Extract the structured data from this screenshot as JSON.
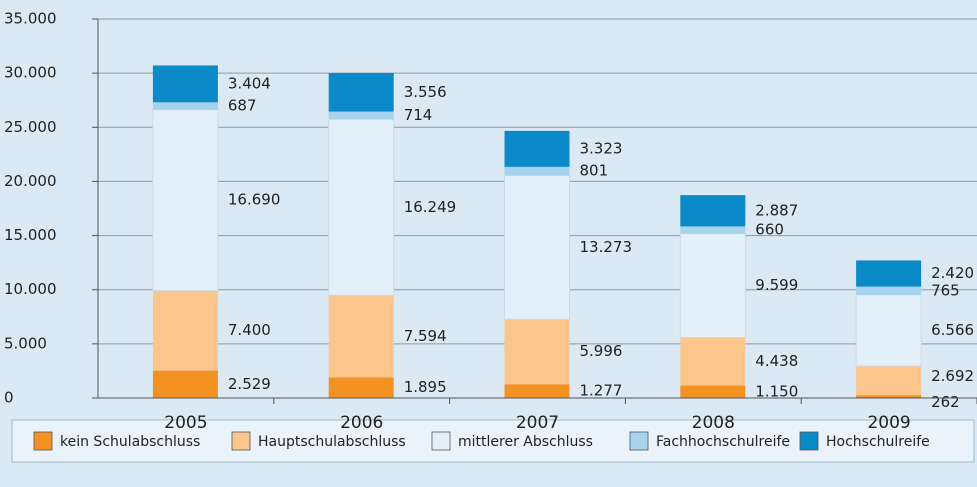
{
  "chart_data": {
    "type": "bar",
    "stacked": true,
    "categories": [
      "2005",
      "2006",
      "2007",
      "2008",
      "2009"
    ],
    "series": [
      {
        "name": "kein Schulabschluss",
        "color": "#f39221",
        "values": [
          2529,
          1895,
          1277,
          1150,
          262
        ],
        "value_labels": [
          "2.529",
          "1.895",
          "1.277",
          "1.150",
          "262"
        ]
      },
      {
        "name": "Hauptschulabschluss",
        "color": "#fbc58b",
        "values": [
          7400,
          7594,
          5996,
          4438,
          2692
        ],
        "value_labels": [
          "7.400",
          "7.594",
          "5.996",
          "4.438",
          "2.692"
        ]
      },
      {
        "name": "mittlerer Abschluss",
        "color": "#e4f0f9",
        "values": [
          16690,
          16249,
          13273,
          9599,
          6566
        ],
        "value_labels": [
          "16.690",
          "16.249",
          "13.273",
          "9.599",
          "6.566"
        ]
      },
      {
        "name": "Fachhochschulreife",
        "color": "#a8d3ee",
        "values": [
          687,
          714,
          801,
          660,
          765
        ],
        "value_labels": [
          "687",
          "714",
          "801",
          "660",
          "765"
        ]
      },
      {
        "name": "Hochschulreife",
        "color": "#0a8ac8",
        "values": [
          3404,
          3556,
          3323,
          2887,
          2420
        ],
        "value_labels": [
          "3.404",
          "3.556",
          "3.323",
          "2.887",
          "2.420"
        ]
      }
    ],
    "ylim": [
      0,
      35000
    ],
    "yticks": [
      0,
      {
        "value": 5000,
        "label": "5.000"
      },
      {
        "value": 10000,
        "label": "10.000"
      },
      {
        "value": 15000,
        "label": "15.000"
      },
      {
        "value": 20000,
        "label": "20.000"
      },
      {
        "value": 25000,
        "label": "25.000"
      },
      {
        "value": 30000,
        "label": "30.000"
      },
      {
        "value": 35000,
        "label": "35.000"
      }
    ],
    "grid": true,
    "legend": "bottom"
  }
}
